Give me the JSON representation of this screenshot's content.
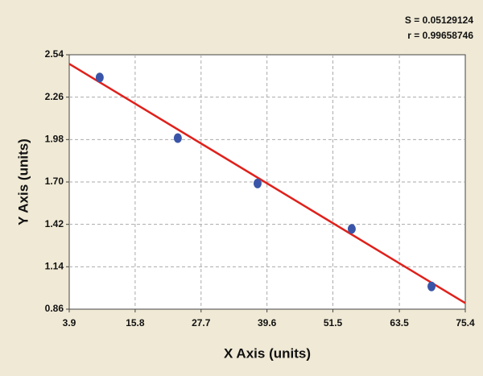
{
  "chart_data": {
    "type": "scatter",
    "annotations": [
      "S = 0.05129124",
      "r = 0.99658746"
    ],
    "x_label": "X Axis (units)",
    "y_label": "Y Axis (units)",
    "xlim": [
      3.9,
      75.4
    ],
    "xticks": [
      3.9,
      15.8,
      27.7,
      39.6,
      51.5,
      63.5,
      75.4
    ],
    "ylim": [
      0.86,
      2.54
    ],
    "yticks": [
      0.86,
      1.14,
      1.42,
      {
        "value": 1.7,
        "label": "1.70"
      },
      1.98,
      2.26,
      2.54
    ],
    "grid": true,
    "points": {
      "color": "#3a55a8",
      "x": [
        9.4,
        23.5,
        37.9,
        54.9,
        69.3
      ],
      "values": [
        2.39,
        1.99,
        1.69,
        1.39,
        1.01
      ]
    },
    "fit_line": {
      "color": "#e0201b",
      "x": [
        3.9,
        75.4
      ],
      "values": [
        2.48,
        0.9
      ]
    }
  }
}
